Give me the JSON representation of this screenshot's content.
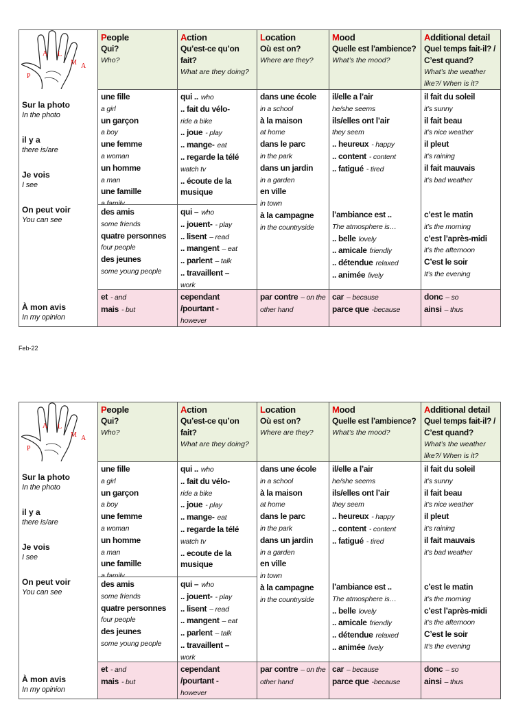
{
  "footer_date": "Feb-22",
  "sheets": [
    {
      "hand_letters": [
        "P",
        "A",
        "L",
        "M",
        "A"
      ],
      "headers": [
        {
          "initial": "P",
          "rest": "eople",
          "question": "Qui?",
          "translation": "Who?"
        },
        {
          "initial": "A",
          "rest": "ction",
          "question": "Qu’est-ce qu’on fait?",
          "translation": "What are they doing?"
        },
        {
          "initial": "L",
          "rest": "ocation",
          "question": "Où est on?",
          "translation": "Where are they?"
        },
        {
          "initial": "M",
          "rest": "ood",
          "question": "Quelle est l’ambience?",
          "translation": "What’s the mood?"
        },
        {
          "initial": "A",
          "rest": "dditional detail",
          "question": "Quel temps fait-il? / C’est quand?",
          "translation": "What’s the weather like?/  When is it?"
        }
      ],
      "left": [
        {
          "b": "Sur la photo",
          "i": "In the photo"
        },
        {
          "b": "il y a",
          "i": "there is/are"
        },
        {
          "b": "Je vois",
          "i": "I see"
        },
        {
          "b": "On peut voir",
          "i": "You can see"
        }
      ],
      "left_bottom": {
        "b": "À mon avis",
        "i": "In my opinion"
      },
      "columns": [
        [
          [
            {
              "b": "une fille"
            },
            {
              "i": "a girl"
            },
            {
              "b": "un garçon"
            },
            {
              "i": "a boy"
            },
            {
              "b": "une femme"
            },
            {
              "i": "a woman"
            },
            {
              "b": "un homme"
            },
            {
              "i": "a man"
            },
            {
              "b": "une famille"
            },
            {
              "i": "a family"
            }
          ],
          [
            {
              "b": "des amis"
            },
            {
              "i": "some friends"
            },
            {
              "b": "quatre personnes"
            },
            {
              "i": "four people"
            },
            {
              "b": "des jeunes"
            },
            {
              "i": "some young people"
            }
          ]
        ],
        [
          [
            {
              "b": "qui ..",
              "i": "who"
            },
            {
              "b": ".. fait du vélo-"
            },
            {
              "i": "ride a bike"
            },
            {
              "b": ".. joue",
              "i": "- play"
            },
            {
              "b": ".. mange-",
              "i": "eat"
            },
            {
              "b": ".. regarde la télé"
            },
            {
              "i": "watch tv"
            },
            {
              "b": ".. écoute de la musique"
            }
          ],
          [
            {
              "b": "qui –",
              "i": "who"
            },
            {
              "b": ".. jouent-",
              "i": "- play"
            },
            {
              "b": ".. lisent",
              "i": "– read"
            },
            {
              "b": ".. mangent",
              "i": "– eat"
            },
            {
              "b": ".. parlent",
              "i": "– talk"
            },
            {
              "b": ".. travaillent –"
            },
            {
              "i": "work"
            }
          ]
        ],
        [
          [
            {
              "b": "dans une école"
            },
            {
              "i": "in a school"
            },
            {
              "b": "à la maison"
            },
            {
              "i": "at home"
            },
            {
              "b": "dans le parc"
            },
            {
              "i": "in the park"
            },
            {
              "b": "dans un jardin"
            },
            {
              "i": "in a garden"
            },
            {
              "b": "en ville"
            },
            {
              "i": "in town"
            },
            {
              "b": "à la campagne"
            },
            {
              "i": "in the countryside"
            }
          ]
        ],
        [
          [
            {
              "b": "il/elle a l’air"
            },
            {
              "i": "he/she seems"
            },
            {
              "b": "ils/elles ont l’air"
            },
            {
              "i": "they seem"
            },
            {
              "b": ".. heureux",
              "i": "- happy"
            },
            {
              "b": ".. content",
              "i": "- content"
            },
            {
              "b": ".. fatigué",
              "i": "- tired"
            }
          ],
          [
            {
              "b": "l’ambiance est .."
            },
            {
              "i": "The atmosphere is…"
            },
            {
              "b": ".. belle",
              "i": "lovely"
            },
            {
              "b": ".. amicale",
              "i": "friendly"
            },
            {
              "b": ".. détendue",
              "i": "relaxed"
            },
            {
              "b": ".. animée",
              "i": "lively"
            }
          ]
        ],
        [
          [
            {
              "b": "il fait du soleil"
            },
            {
              "i": "it’s sunny"
            },
            {
              "b": "il fait beau"
            },
            {
              "i": "it’s nice weather"
            },
            {
              "b": "il pleut"
            },
            {
              "i": "it’s raining"
            },
            {
              "b": "il fait mauvais"
            },
            {
              "i": "it’s bad weather"
            }
          ],
          [
            {
              "b": "c’est le matin"
            },
            {
              "i": "it’s the morning"
            },
            {
              "b": "c’est l’après-midi"
            },
            {
              "i": "it’s the afternoon"
            },
            {
              "b": "C’est le soir"
            },
            {
              "i": "It’s the evening"
            }
          ]
        ]
      ],
      "bottom": [
        [
          {
            "b": "et",
            "i": "- and"
          },
          {
            "b": "mais",
            "i": "- but"
          }
        ],
        [
          {
            "b": "cependant"
          },
          {
            "b": "/pourtant -"
          },
          {
            "i": "however"
          }
        ],
        [
          {
            "b": "par contre",
            "i": "– on the other hand"
          }
        ],
        [
          {
            "b": "car",
            "i": "– because"
          },
          {
            "b": "parce que",
            "i": "-because"
          }
        ],
        [
          {
            "b": "donc",
            "i": "– so"
          },
          {
            "b": "ainsi",
            "i": "– thus"
          }
        ]
      ]
    },
    {
      "hand_letters": [
        "P",
        "A",
        "L",
        "M",
        "A"
      ],
      "headers": [
        {
          "initial": "P",
          "rest": "eople",
          "question": "Qui?",
          "translation": "Who?"
        },
        {
          "initial": "A",
          "rest": "ction",
          "question": "Qu’est-ce qu’on fait?",
          "translation": "What are they doing?"
        },
        {
          "initial": "L",
          "rest": "ocation",
          "question": "Où est on?",
          "translation": "Where are they?"
        },
        {
          "initial": "M",
          "rest": "ood",
          "question": "Quelle est l’ambience?",
          "translation": "What’s the mood?"
        },
        {
          "initial": "A",
          "rest": "dditional detail",
          "question": "Quel temps fait-il? / C’est quand?",
          "translation": "What’s the weather like?/  When is it?"
        }
      ],
      "left": [
        {
          "b": "Sur la photo",
          "i": "In the photo"
        },
        {
          "b": "il y a",
          "i": "there is/are"
        },
        {
          "b": "Je vois",
          "i": "I see"
        },
        {
          "b": "On peut voir",
          "i": "You can see"
        }
      ],
      "left_bottom": {
        "b": "À mon avis",
        "i": "In my opinion"
      },
      "columns": [
        [
          [
            {
              "b": "une fille"
            },
            {
              "i": "a girl"
            },
            {
              "b": "un garçon"
            },
            {
              "i": "a boy"
            },
            {
              "b": "une femme"
            },
            {
              "i": "a woman"
            },
            {
              "b": "un homme"
            },
            {
              "i": "a man"
            },
            {
              "b": "une famille"
            },
            {
              "i": "a family"
            }
          ],
          [
            {
              "b": "des amis"
            },
            {
              "i": "some friends"
            },
            {
              "b": "quatre personnes"
            },
            {
              "i": "four people"
            },
            {
              "b": "des jeunes"
            },
            {
              "i": "some young people"
            }
          ]
        ],
        [
          [
            {
              "b": "qui ..",
              "i": "who"
            },
            {
              "b": ".. fait du vélo-"
            },
            {
              "i": "ride a bike"
            },
            {
              "b": ".. joue",
              "i": "- play"
            },
            {
              "b": ".. mange-",
              "i": "eat"
            },
            {
              "b": ".. regarde la télé"
            },
            {
              "i": "watch tv"
            },
            {
              "b": ".. ecoute de la musique"
            }
          ],
          [
            {
              "b": "qui –",
              "i": "who"
            },
            {
              "b": ".. jouent-",
              "i": "- play"
            },
            {
              "b": ".. lisent",
              "i": "– read"
            },
            {
              "b": ".. mangent",
              "i": "– eat"
            },
            {
              "b": ".. parlent",
              "i": "– talk"
            },
            {
              "b": ".. travaillent –"
            },
            {
              "i": "work"
            }
          ]
        ],
        [
          [
            {
              "b": "dans une école"
            },
            {
              "i": "in a school"
            },
            {
              "b": "à la maison"
            },
            {
              "i": "at home"
            },
            {
              "b": "dans le parc"
            },
            {
              "i": "in the park"
            },
            {
              "b": "dans un jardin"
            },
            {
              "i": "in a garden"
            },
            {
              "b": "en ville"
            },
            {
              "i": "in town"
            },
            {
              "b": "à la campagne"
            },
            {
              "i": "in the countryside"
            }
          ]
        ],
        [
          [
            {
              "b": "il/elle a l’air"
            },
            {
              "i": "he/she seems"
            },
            {
              "b": "ils/elles ont l’air"
            },
            {
              "i": "they seem"
            },
            {
              "b": ".. heureux",
              "i": "- happy"
            },
            {
              "b": ".. content",
              "i": "- content"
            },
            {
              "b": ".. fatigué",
              "i": "- tired"
            }
          ],
          [
            {
              "b": "l’ambiance est .."
            },
            {
              "i": "The atmosphere is…"
            },
            {
              "b": ".. belle",
              "i": "lovely"
            },
            {
              "b": ".. amicale",
              "i": "friendly"
            },
            {
              "b": ".. détendue",
              "i": "relaxed"
            },
            {
              "b": ".. animée",
              "i": "lively"
            }
          ]
        ],
        [
          [
            {
              "b": "il fait du soleil"
            },
            {
              "i": "it’s sunny"
            },
            {
              "b": "il fait beau"
            },
            {
              "i": "it’s nice weather"
            },
            {
              "b": "il pleut"
            },
            {
              "i": "it’s raining"
            },
            {
              "b": "il fait mauvais"
            },
            {
              "i": "it’s bad weather"
            }
          ],
          [
            {
              "b": "c’est le matin"
            },
            {
              "i": "it’s the morning"
            },
            {
              "b": "c’est l’après-midi"
            },
            {
              "i": "it’s the afternoon"
            },
            {
              "b": "C’est le soir"
            },
            {
              "i": "It’s the evening"
            }
          ]
        ]
      ],
      "bottom": [
        [
          {
            "b": "et",
            "i": "- and"
          },
          {
            "b": "mais",
            "i": "- but"
          }
        ],
        [
          {
            "b": "cependant"
          },
          {
            "b": "/pourtant -"
          },
          {
            "i": "however"
          }
        ],
        [
          {
            "b": "par contre",
            "i": "– on the other hand"
          }
        ],
        [
          {
            "b": "car",
            "i": "– because"
          },
          {
            "b": "parce que",
            "i": "-because"
          }
        ],
        [
          {
            "b": "donc",
            "i": "– so"
          },
          {
            "b": "ainsi",
            "i": "– thus"
          }
        ]
      ]
    }
  ]
}
